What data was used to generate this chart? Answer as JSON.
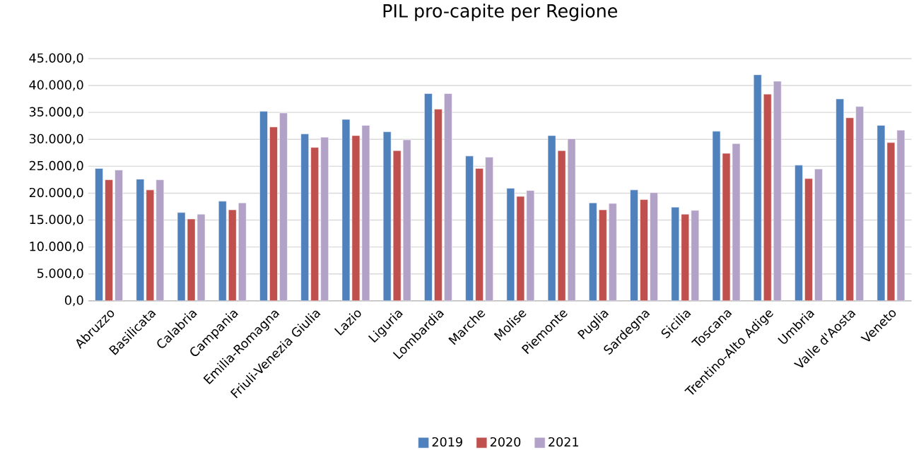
{
  "chart_data": {
    "type": "bar",
    "title": "PIL pro-capite per Regione",
    "categories": [
      "Abruzzo",
      "Basilicata",
      "Calabria",
      "Campania",
      "Emilia-Romagna",
      "Friuli-Venezia Giulia",
      "Lazio",
      "Liguria",
      "Lombardia",
      "Marche",
      "Molise",
      "Piemonte",
      "Puglia",
      "Sardegna",
      "Sicilia",
      "Toscana",
      "Trentino-Alto Adige",
      "Umbria",
      "Valle d'Aosta",
      "Veneto"
    ],
    "series": [
      {
        "name": "2019",
        "color": "#4f81bd",
        "values": [
          24600,
          22600,
          16400,
          18500,
          35200,
          31000,
          33700,
          31400,
          38500,
          26900,
          20900,
          30700,
          18200,
          20600,
          17400,
          31500,
          42000,
          25200,
          37500,
          32600
        ]
      },
      {
        "name": "2020",
        "color": "#c0504d",
        "values": [
          22500,
          20600,
          15200,
          16900,
          32300,
          28500,
          30700,
          27900,
          35600,
          24600,
          19400,
          27900,
          16900,
          18800,
          16100,
          27400,
          38400,
          22700,
          34000,
          29400
        ]
      },
      {
        "name": "2021",
        "color": "#b3a2c7",
        "values": [
          24300,
          22500,
          16100,
          18200,
          34900,
          30400,
          32600,
          29900,
          38500,
          26700,
          20500,
          30100,
          18100,
          20100,
          16800,
          29200,
          40800,
          24500,
          36100,
          31700
        ]
      }
    ],
    "ylim": [
      0,
      45000
    ],
    "yticks": [
      {
        "value": 0,
        "label": "0,0"
      },
      {
        "value": 5000,
        "label": "5.000,0"
      },
      {
        "value": 10000,
        "label": "10.000,0"
      },
      {
        "value": 15000,
        "label": "15.000,0"
      },
      {
        "value": 20000,
        "label": "20.000,0"
      },
      {
        "value": 25000,
        "label": "25.000,0"
      },
      {
        "value": 30000,
        "label": "30.000,0"
      },
      {
        "value": 35000,
        "label": "35.000,0"
      },
      {
        "value": 40000,
        "label": "40.000,0"
      },
      {
        "value": 45000,
        "label": "45.000,0"
      }
    ],
    "grid": "y",
    "legend": "bottom"
  }
}
